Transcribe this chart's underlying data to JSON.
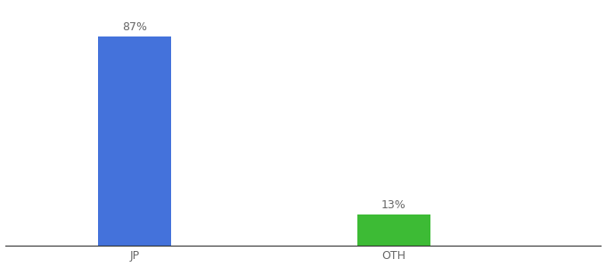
{
  "categories": [
    "JP",
    "OTH"
  ],
  "values": [
    87,
    13
  ],
  "bar_colors": [
    "#4472db",
    "#3dbb35"
  ],
  "labels": [
    "87%",
    "13%"
  ],
  "background_color": "#ffffff",
  "bar_width": 0.28,
  "x_positions": [
    0,
    1
  ],
  "xlim": [
    -0.5,
    1.8
  ],
  "ylim": [
    0,
    100
  ],
  "label_fontsize": 9,
  "tick_fontsize": 9,
  "label_color": "#666666"
}
